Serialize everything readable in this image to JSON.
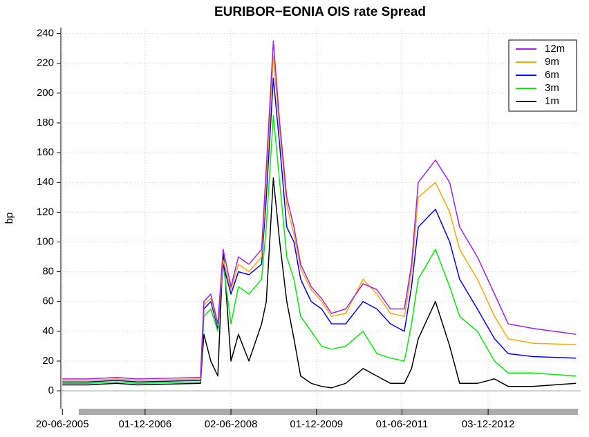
{
  "chart_data": {
    "type": "line",
    "title": "EURIBOR−EONIA OIS rate Spread",
    "y_label": "bp",
    "x": [
      "2005-06-20",
      "2005-12-01",
      "2006-06-01",
      "2006-10-15",
      "2007-11-20",
      "2007-12-12",
      "2008-01-25",
      "2008-03-10",
      "2008-04-13",
      "2008-06-02",
      "2008-07-20",
      "2008-09-25",
      "2008-12-15",
      "2009-01-14",
      "2009-02-28",
      "2009-04-10",
      "2009-05-25",
      "2009-07-10",
      "2009-08-22",
      "2009-10-28",
      "2010-01-03",
      "2010-03-07",
      "2010-06-06",
      "2010-09-25",
      "2010-12-22",
      "2011-03-19",
      "2011-06-16",
      "2011-08-01",
      "2011-09-13",
      "2012-01-01",
      "2012-04-01",
      "2012-06-04",
      "2012-09-25",
      "2013-01-13",
      "2013-04-10",
      "2013-09-13",
      "2014-06-18"
    ],
    "series": [
      {
        "name": "12m",
        "color": "#a020f0",
        "values": [
          8,
          8,
          9,
          8,
          9,
          60,
          65,
          45,
          95,
          70,
          90,
          85,
          95,
          150,
          235,
          180,
          130,
          110,
          85,
          70,
          62,
          52,
          55,
          72,
          68,
          55,
          55,
          85,
          140,
          155,
          140,
          110,
          90,
          65,
          45,
          42,
          38
        ]
      },
      {
        "name": "9m",
        "color": "#ffa500",
        "values": [
          7,
          7,
          8,
          7,
          8,
          58,
          62,
          44,
          88,
          68,
          85,
          80,
          90,
          140,
          225,
          175,
          125,
          105,
          82,
          68,
          60,
          50,
          52,
          75,
          65,
          52,
          50,
          80,
          130,
          140,
          120,
          95,
          75,
          50,
          35,
          32,
          31
        ]
      },
      {
        "name": "6m",
        "color": "#0000ff",
        "values": [
          6,
          6,
          7,
          6,
          7,
          55,
          60,
          42,
          85,
          65,
          80,
          78,
          85,
          130,
          210,
          165,
          110,
          100,
          75,
          60,
          55,
          45,
          45,
          60,
          55,
          45,
          40,
          70,
          110,
          122,
          100,
          75,
          55,
          35,
          25,
          23,
          22
        ]
      },
      {
        "name": "3m",
        "color": "#00ee00",
        "values": [
          5,
          5,
          6,
          5,
          6,
          50,
          55,
          40,
          85,
          45,
          70,
          65,
          75,
          110,
          185,
          140,
          90,
          75,
          50,
          40,
          30,
          28,
          30,
          40,
          25,
          22,
          20,
          45,
          75,
          95,
          70,
          50,
          40,
          20,
          12,
          12,
          10
        ]
      },
      {
        "name": "1m",
        "color": "#000000",
        "values": [
          4,
          4,
          5,
          4,
          5,
          38,
          20,
          10,
          95,
          20,
          38,
          20,
          45,
          60,
          143,
          100,
          60,
          35,
          10,
          5,
          3,
          2,
          5,
          15,
          10,
          5,
          5,
          15,
          35,
          60,
          30,
          5,
          5,
          8,
          3,
          3,
          5
        ]
      }
    ],
    "xlim": [
      "2005-06-10",
      "2014-07-18"
    ],
    "xticks": [
      {
        "value": "2005-06-20",
        "label": "20-06-2005"
      },
      {
        "value": "2006-12-01",
        "label": "01-12-2006"
      },
      {
        "value": "2008-06-02",
        "label": "02-06-2008"
      },
      {
        "value": "2009-12-01",
        "label": "01-12-2009"
      },
      {
        "value": "2011-06-01",
        "label": "01-06-2011"
      },
      {
        "value": "2012-12-03",
        "label": "03-12-2012"
      }
    ],
    "ylim": [
      -12,
      244
    ],
    "yticks": [
      0,
      20,
      40,
      60,
      80,
      100,
      120,
      140,
      160,
      180,
      200,
      220,
      240
    ],
    "grid": true,
    "legend": "top-right"
  }
}
